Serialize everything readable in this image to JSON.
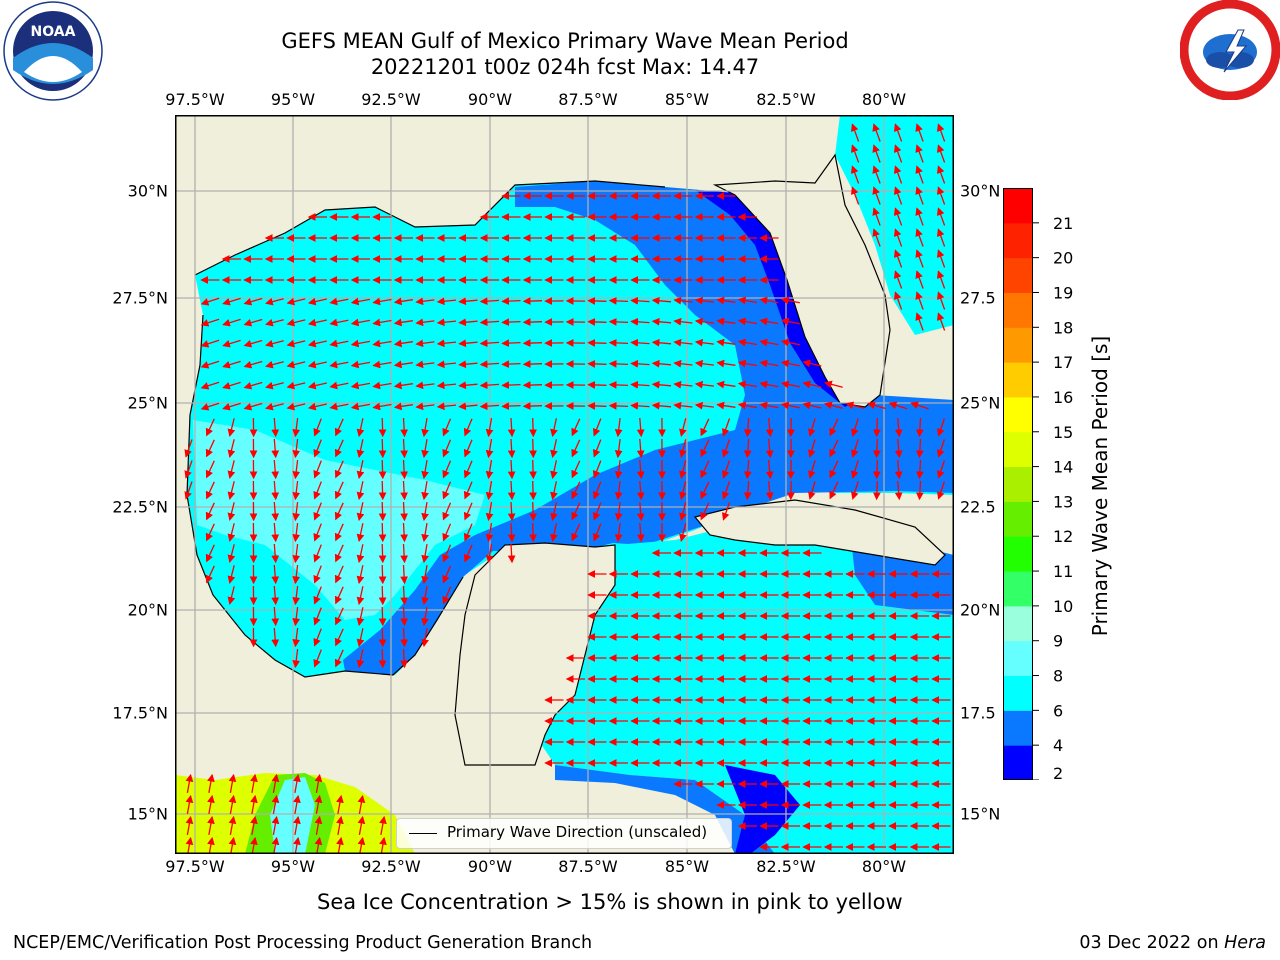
{
  "title": {
    "line1": "GEFS MEAN Gulf of Mexico Primary Wave Mean Period",
    "line2": "20221201 t00z 024h fcst   Max: 14.47"
  },
  "logos": {
    "left": {
      "name": "NOAA",
      "ring_text": "NATIONAL OCEANIC AND ATMOSPHERIC ADMINISTRATION · U.S. DEPARTMENT OF COMMERCE"
    },
    "right": {
      "name": "NATIONAL WEATHER SERVICE"
    }
  },
  "axes": {
    "lon_labels": [
      "97.5°W",
      "95°W",
      "92.5°W",
      "90°W",
      "87.5°W",
      "85°W",
      "82.5°W",
      "80°W"
    ],
    "lat_labels_left": [
      "30°N",
      "27.5°N",
      "25°N",
      "22.5°N",
      "20°N",
      "17.5°N",
      "15°N"
    ],
    "lat_labels_right": [
      "30°N",
      "27.5",
      "25°N",
      "22.5",
      "20°N",
      "17.5",
      "15°N"
    ]
  },
  "colorbar": {
    "label": "Primary Wave Mean Period [s]",
    "tick_labels": [
      "2",
      "4",
      "6",
      "8",
      "9",
      "10",
      "11",
      "12",
      "13",
      "14",
      "15",
      "16",
      "17",
      "18",
      "19",
      "20",
      "21"
    ],
    "colors": [
      "#0000ff",
      "#0a78ff",
      "#00ffff",
      "#66ffff",
      "#99ffdd",
      "#33ff66",
      "#22ff00",
      "#66ee00",
      "#aaee00",
      "#ddff00",
      "#ffff00",
      "#ffcc00",
      "#ff9900",
      "#ff7700",
      "#ff4400",
      "#ff2200",
      "#ff0000"
    ]
  },
  "colors": {
    "land": "#efefdb",
    "arrow": "#ff0000",
    "grid": "#b0b0b0",
    "coast": "#000000"
  },
  "legend": {
    "label": "Primary Wave Direction (unscaled)"
  },
  "ice_note": "Sea Ice Concentration > 15% is shown in pink to yellow",
  "footer": {
    "left": "NCEP/EMC/Verification Post Processing Product Generation Branch",
    "right_date": "03 Dec 2022",
    "right_on": "on",
    "right_machine": "Hera"
  }
}
